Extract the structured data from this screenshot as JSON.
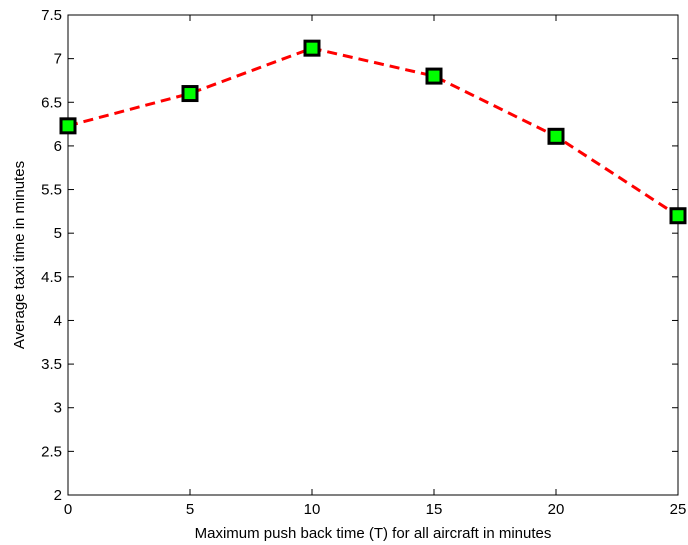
{
  "chart_data": {
    "type": "line",
    "title": "",
    "xlabel": "Maximum push back time (T) for all aircraft in minutes",
    "ylabel": "Average taxi time in minutes",
    "xlim": [
      0,
      25
    ],
    "ylim": [
      2,
      7.5
    ],
    "xticks": [
      0,
      5,
      10,
      15,
      20,
      25
    ],
    "xtick_labels": [
      "0",
      "5",
      "10",
      "15",
      "20",
      "25"
    ],
    "yticks": [
      2,
      2.5,
      3,
      3.5,
      4,
      4.5,
      5,
      5.5,
      6,
      6.5,
      7,
      7.5
    ],
    "ytick_labels": [
      "2",
      "2.5",
      "3",
      "3.5",
      "4",
      "4.5",
      "5",
      "5.5",
      "6",
      "6.5",
      "7",
      "7.5"
    ],
    "grid": false,
    "legend": "none",
    "series": [
      {
        "x": [
          0,
          5,
          10,
          15,
          20,
          25
        ],
        "y": [
          6.23,
          6.6,
          7.12,
          6.8,
          6.11,
          5.2
        ],
        "line_color": "#ff0000",
        "line_style": "dashed",
        "marker": "square",
        "marker_face_color": "#00ff00",
        "marker_edge_color": "#000000"
      }
    ]
  }
}
